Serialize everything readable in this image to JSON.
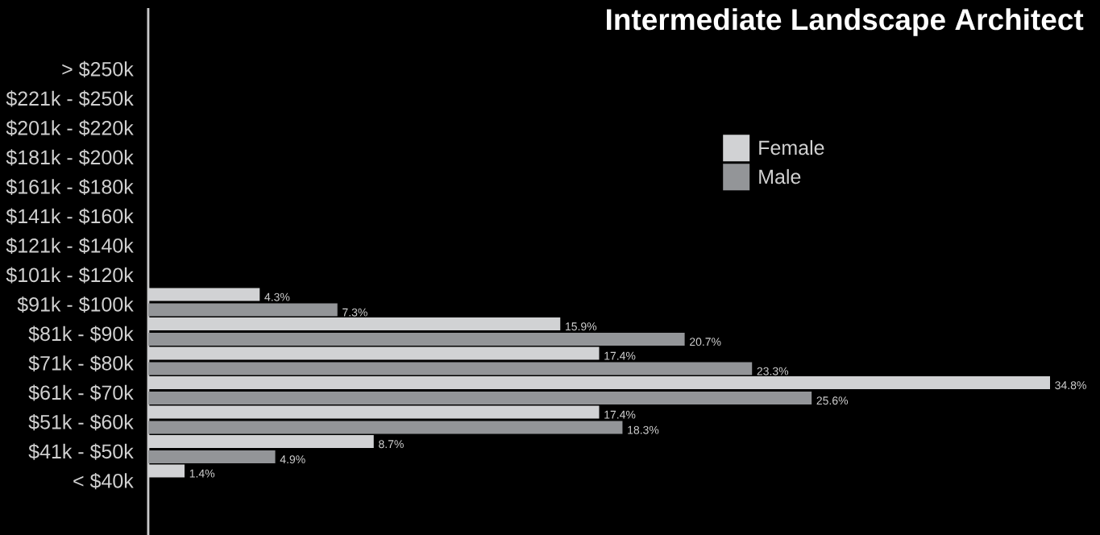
{
  "chart_data": {
    "type": "bar",
    "orientation": "horizontal",
    "title": "Intermediate Landscape Architect",
    "categories": [
      "> $250k",
      "$221k - $250k",
      "$201k - $220k",
      "$181k - $200k",
      "$161k - $180k",
      "$141k - $160k",
      "$121k - $140k",
      "$101k - $120k",
      "$91k - $100k",
      "$81k - $90k",
      "$71k - $80k",
      "$61k - $70k",
      "$51k - $60k",
      "$41k - $50k",
      "< $40k"
    ],
    "series": [
      {
        "name": "Female",
        "color": "#d1d2d4",
        "values": [
          null,
          null,
          null,
          null,
          null,
          null,
          null,
          null,
          4.3,
          15.9,
          17.4,
          34.8,
          17.4,
          8.7,
          1.4
        ],
        "value_labels": [
          null,
          null,
          null,
          null,
          null,
          null,
          null,
          null,
          "4.3%",
          "15.9%",
          "17.4%",
          "34.8%",
          "17.4%",
          "8.7%",
          "1.4%"
        ]
      },
      {
        "name": "Male",
        "color": "#939598",
        "values": [
          null,
          null,
          null,
          null,
          null,
          null,
          null,
          null,
          7.3,
          20.7,
          23.3,
          25.6,
          18.3,
          4.9,
          null
        ],
        "value_labels": [
          null,
          null,
          null,
          null,
          null,
          null,
          null,
          null,
          "7.3%",
          "20.7%",
          "23.3%",
          "25.6%",
          "18.3%",
          "4.9%",
          null
        ]
      }
    ],
    "tick_labels": "y",
    "legend": "top right"
  }
}
